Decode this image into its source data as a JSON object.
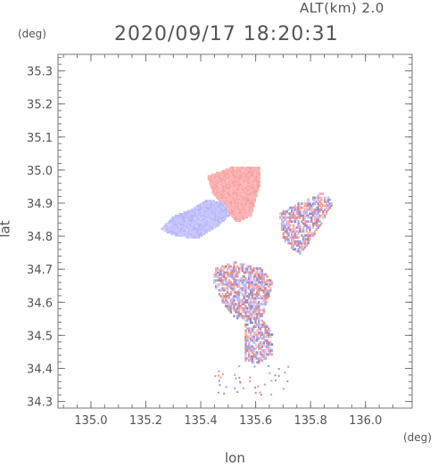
{
  "header": {
    "alt_label": "ALT(km) 2.0",
    "datetime": "2020/09/17 18:20:31"
  },
  "axes": {
    "x_unit": "(deg)",
    "y_unit": "(deg)",
    "x_label": "lon",
    "y_label": "lat"
  },
  "chart_data": {
    "type": "heatmap",
    "xlabel": "lon",
    "ylabel": "lat",
    "x_unit": "(deg)",
    "y_unit": "(deg)",
    "xlim": [
      134.88,
      136.17
    ],
    "ylim": [
      34.28,
      35.35
    ],
    "x_ticks": [
      135.0,
      135.2,
      135.4,
      135.6,
      135.8,
      136.0
    ],
    "x_tick_labels": [
      "135.0",
      "135.2",
      "135.4",
      "135.6",
      "135.8",
      "136.0"
    ],
    "y_ticks": [
      34.3,
      34.4,
      34.5,
      34.6,
      34.7,
      34.8,
      34.9,
      35.0,
      35.1,
      35.2,
      35.3
    ],
    "y_tick_labels": [
      "34.3",
      "34.4",
      "34.5",
      "34.6",
      "34.7",
      "34.8",
      "34.9",
      "35.0",
      "35.1",
      "35.2",
      "35.3"
    ],
    "colors": {
      "positive": "#f4a6a6",
      "negative": "#b4b4f4",
      "frame": "#777777"
    },
    "regions": [
      {
        "name": "",
        "sign": "positive",
        "polygon": [
          [
            135.42,
            34.98
          ],
          [
            135.52,
            35.01
          ],
          [
            135.61,
            35.01
          ],
          [
            135.61,
            34.95
          ],
          [
            135.58,
            34.86
          ],
          [
            135.53,
            34.84
          ],
          [
            135.48,
            34.88
          ],
          [
            135.44,
            34.93
          ]
        ]
      },
      {
        "name": "",
        "sign": "negative",
        "polygon": [
          [
            135.25,
            34.82
          ],
          [
            135.3,
            34.86
          ],
          [
            135.36,
            34.88
          ],
          [
            135.42,
            34.91
          ],
          [
            135.48,
            34.9
          ],
          [
            135.5,
            34.86
          ],
          [
            135.46,
            34.83
          ],
          [
            135.38,
            34.79
          ],
          [
            135.3,
            34.8
          ]
        ]
      },
      {
        "name": "",
        "sign": "mixed",
        "polygon": [
          [
            135.45,
            34.7
          ],
          [
            135.52,
            34.72
          ],
          [
            135.62,
            34.7
          ],
          [
            135.66,
            34.66
          ],
          [
            135.64,
            34.6
          ],
          [
            135.62,
            34.55
          ],
          [
            135.52,
            34.55
          ],
          [
            135.47,
            34.6
          ],
          [
            135.44,
            34.66
          ]
        ]
      },
      {
        "name": "",
        "sign": "mixed",
        "polygon": [
          [
            135.56,
            34.55
          ],
          [
            135.62,
            34.55
          ],
          [
            135.66,
            34.5
          ],
          [
            135.66,
            34.44
          ],
          [
            135.6,
            34.41
          ],
          [
            135.56,
            34.42
          ]
        ]
      },
      {
        "name": "",
        "sign": "mixed",
        "polygon": [
          [
            135.68,
            34.87
          ],
          [
            135.76,
            34.9
          ],
          [
            135.84,
            34.93
          ],
          [
            135.88,
            34.9
          ],
          [
            135.84,
            34.84
          ],
          [
            135.76,
            34.74
          ],
          [
            135.7,
            34.78
          ]
        ]
      }
    ]
  }
}
